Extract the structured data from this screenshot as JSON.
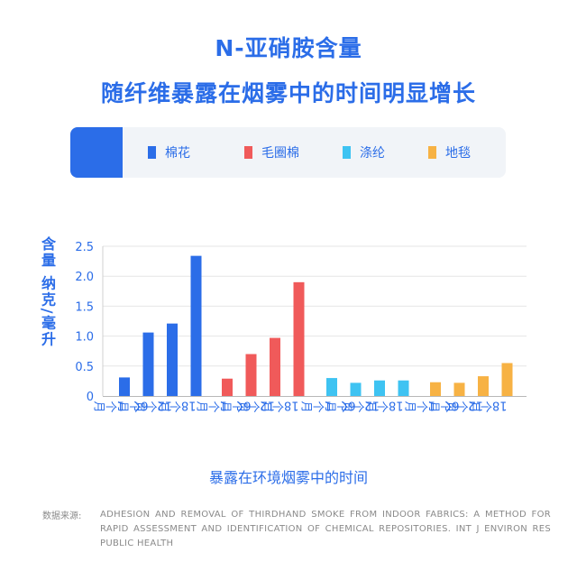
{
  "title_line1": "N-亚硝胺含量",
  "title_line2": "随纤维暴露在烟雾中的时间明显增长",
  "legend": [
    {
      "label": "棉花",
      "color": "#2b6de8"
    },
    {
      "label": "毛圈棉",
      "color": "#f05a5a"
    },
    {
      "label": "涤纶",
      "color": "#3ec3f2"
    },
    {
      "label": "地毯",
      "color": "#f7b244"
    }
  ],
  "chart_data": {
    "type": "bar",
    "ylabel": "含量 纳克/毫升",
    "xlabel": "暴露在环境烟雾中的时间",
    "ylim": [
      0,
      2.5
    ],
    "yticks": [
      "0",
      "0.5",
      "1.0",
      "1.5",
      "2.0",
      "2.5"
    ],
    "categories": [
      "1个月",
      "6个月",
      "12个月",
      "18个月"
    ],
    "grid": true,
    "series": [
      {
        "name": "棉花",
        "color": "#2b6de8",
        "values": [
          0.31,
          1.06,
          1.21,
          2.34
        ]
      },
      {
        "name": "毛圈棉",
        "color": "#f05a5a",
        "values": [
          0.29,
          0.7,
          0.97,
          1.9
        ]
      },
      {
        "name": "涤纶",
        "color": "#3ec3f2",
        "values": [
          0.3,
          0.22,
          0.26,
          0.26
        ]
      },
      {
        "name": "地毯",
        "color": "#f7b244",
        "values": [
          0.23,
          0.22,
          0.33,
          0.55
        ]
      }
    ]
  },
  "source": {
    "label": "数据来源:",
    "text": "ADHESION AND REMOVAL OF THIRDHAND SMOKE FROM INDOOR FABRICS: A METHOD FOR RAPID ASSESSMENT AND IDENTIFICATION OF CHEMICAL REPOSITORIES. INT J ENVIRON RES PUBLIC HEALTH"
  }
}
